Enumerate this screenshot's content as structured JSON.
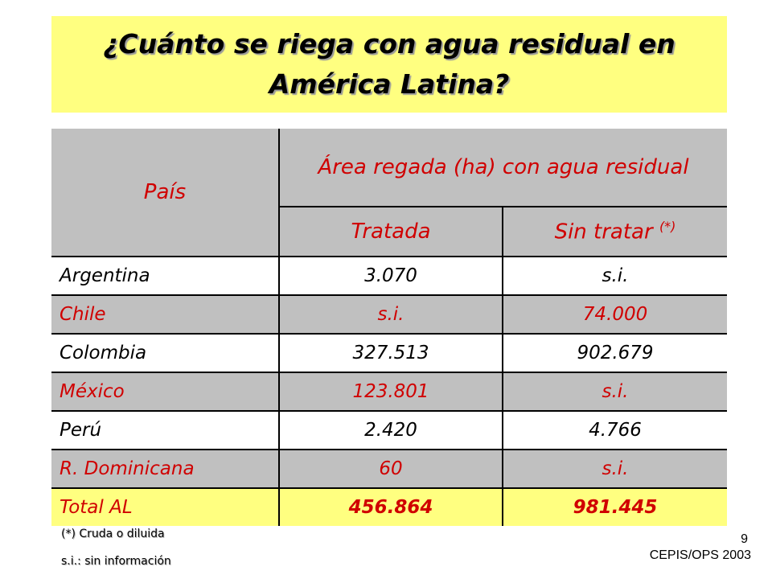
{
  "title": "¿Cuánto se riega con agua residual en América Latina?",
  "table": {
    "header": {
      "country": "País",
      "area": "Área regada (ha) con agua residual",
      "treated": "Tratada",
      "untreated": "Sin tratar",
      "untreated_note": "(*)"
    },
    "rows": [
      {
        "country": "Argentina",
        "treated": "3.070",
        "untreated": "s.i."
      },
      {
        "country": "Chile",
        "treated": "s.i.",
        "untreated": "74.000"
      },
      {
        "country": "Colombia",
        "treated": "327.513",
        "untreated": "902.679"
      },
      {
        "country": "México",
        "treated": "123.801",
        "untreated": "s.i."
      },
      {
        "country": "Perú",
        "treated": "2.420",
        "untreated": "4.766"
      },
      {
        "country": "R. Dominicana",
        "treated": "60",
        "untreated": "s.i."
      }
    ],
    "total": {
      "country": "Total AL",
      "treated": "456.864",
      "untreated": "981.445"
    }
  },
  "footnotes": {
    "untreated_note": "(*) Cruda o diluida",
    "no_info": "s.i.: sin información"
  },
  "page_number": "9",
  "credit": "CEPIS/OPS 2003",
  "colors": {
    "highlight_yellow": "#ffff80",
    "header_gray": "#c0c0c0",
    "text_red": "#d00000"
  }
}
